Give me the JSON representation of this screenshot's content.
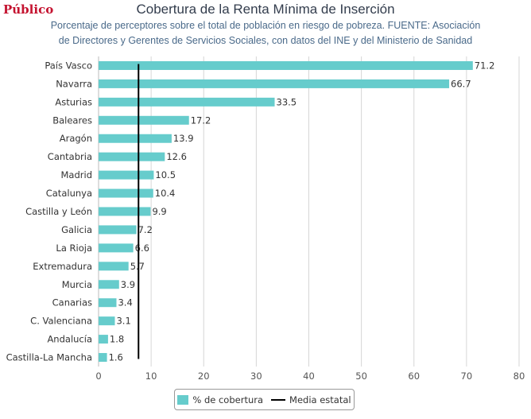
{
  "brand": {
    "logo_text": "Público",
    "logo_color": "#c4122f"
  },
  "chart_data": {
    "type": "bar",
    "orientation": "horizontal",
    "title": "Cobertura de la Renta Mínima de Inserción",
    "subtitle_lines": [
      "Porcentaje de perceptores sobre el total de población en riesgo de pobreza. FUENTE: Asociación",
      "de Directores y Gerentes de Servicios Sociales, con datos del INE y del Ministerio de Sanidad"
    ],
    "categories": [
      "País Vasco",
      "Navarra",
      "Asturias",
      "Baleares",
      "Aragón",
      "Cantabria",
      "Madrid",
      "Catalunya",
      "Castilla y León",
      "Galicia",
      "La Rioja",
      "Extremadura",
      "Murcia",
      "Canarias",
      "C. Valenciana",
      "Andalucía",
      "Castilla-La Mancha"
    ],
    "series": [
      {
        "name": "% de cobertura",
        "values": [
          71.2,
          66.7,
          33.5,
          17.2,
          13.9,
          12.6,
          10.5,
          10.4,
          9.9,
          7.2,
          6.6,
          5.7,
          3.9,
          3.4,
          3.1,
          1.8,
          1.6
        ],
        "color": "#66cccc"
      }
    ],
    "data_labels": [
      "71.2",
      "66.7",
      "33.5",
      "17.2",
      "13.9",
      "12.6",
      "10.5",
      "10.4",
      "9.9",
      "7.2",
      "6.6",
      "5.7",
      "3.9",
      "3.4",
      "3.1",
      "1.8",
      "1.6"
    ],
    "reference_line": {
      "name": "Media estatal",
      "value": 7.6,
      "color": "#000000"
    },
    "xlim": [
      0,
      80
    ],
    "xticks": [
      "0",
      "10",
      "20",
      "30",
      "40",
      "50",
      "60",
      "70",
      "80"
    ],
    "grid": "vertical",
    "legend_position": "bottom"
  }
}
